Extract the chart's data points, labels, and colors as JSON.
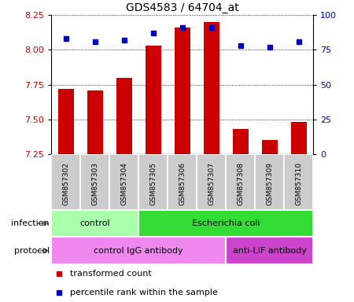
{
  "title": "GDS4583 / 64704_at",
  "samples": [
    "GSM857302",
    "GSM857303",
    "GSM857304",
    "GSM857305",
    "GSM857306",
    "GSM857307",
    "GSM857308",
    "GSM857309",
    "GSM857310"
  ],
  "red_values": [
    7.72,
    7.71,
    7.8,
    8.03,
    8.16,
    8.2,
    7.43,
    7.35,
    7.48
  ],
  "blue_values": [
    83,
    81,
    82,
    87,
    91,
    91,
    78,
    77,
    81
  ],
  "ylim_left": [
    7.25,
    8.25
  ],
  "ylim_right": [
    0,
    100
  ],
  "yticks_left": [
    7.25,
    7.5,
    7.75,
    8.0,
    8.25
  ],
  "yticks_right": [
    0,
    25,
    50,
    75,
    100
  ],
  "infection_groups": [
    {
      "label": "control",
      "start": 0,
      "end": 3,
      "color": "#aaffaa"
    },
    {
      "label": "Escherichia coli",
      "start": 3,
      "end": 9,
      "color": "#33dd33"
    }
  ],
  "protocol_groups": [
    {
      "label": "control IgG antibody",
      "start": 0,
      "end": 6,
      "color": "#ee88ee"
    },
    {
      "label": "anti-LIF antibody",
      "start": 6,
      "end": 9,
      "color": "#cc44cc"
    }
  ],
  "legend_red": "transformed count",
  "legend_blue": "percentile rank within the sample",
  "infection_label": "infection",
  "protocol_label": "protocol",
  "bar_color": "#cc0000",
  "dot_color": "#0000bb",
  "sample_bg": "#cccccc",
  "left_tick_color": "#cc0000",
  "right_tick_color": "#0000bb"
}
